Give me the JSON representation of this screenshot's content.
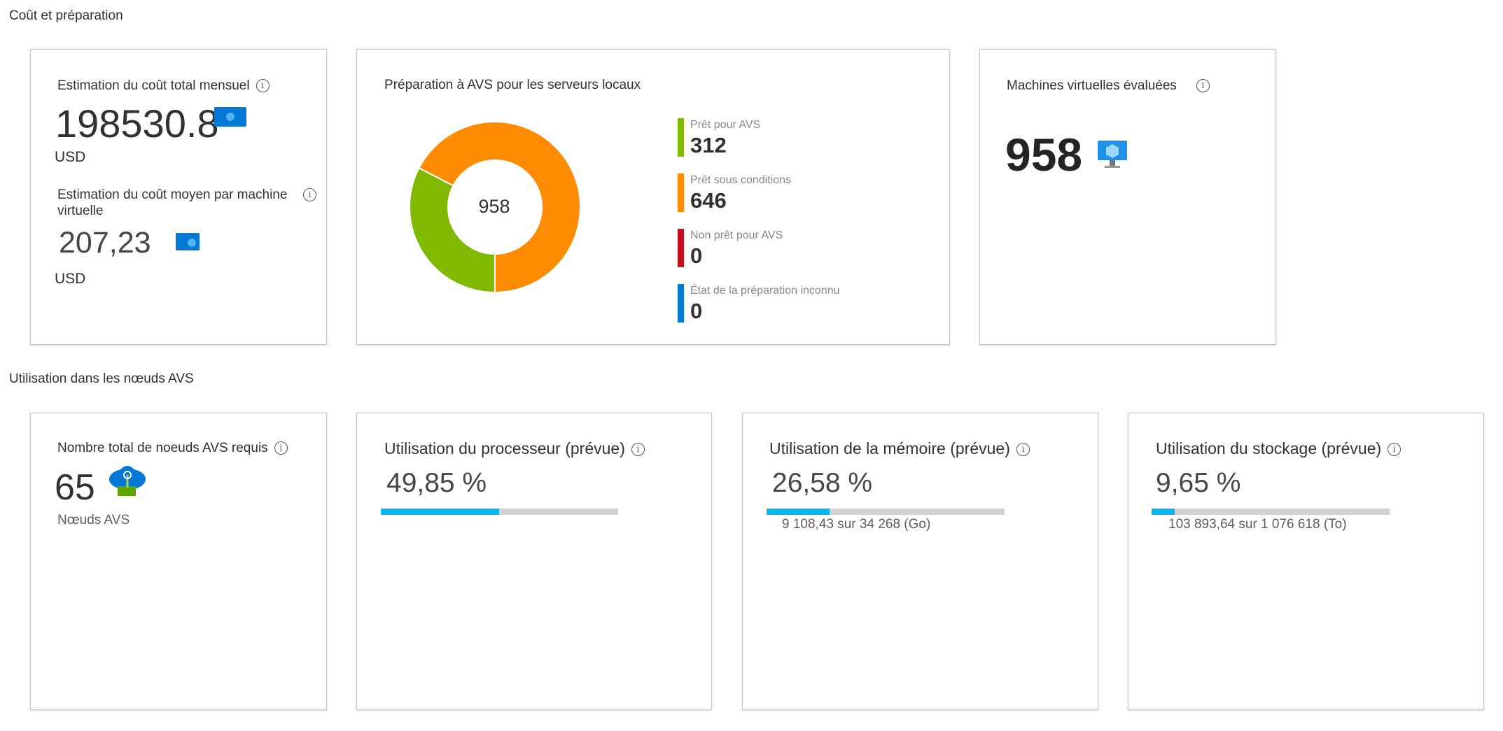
{
  "sections": {
    "cost": "Coût et préparation",
    "usage": "Utilisation dans les nœuds AVS"
  },
  "cost_card": {
    "total_title": "Estimation du coût total mensuel",
    "total_value": "198530.8",
    "total_currency": "USD",
    "avg_title": "Estimation du coût moyen par machine virtuelle",
    "avg_value": "207,23",
    "avg_currency": "USD",
    "icon": "money-icon"
  },
  "readiness": {
    "title": "Préparation à AVS pour les serveurs locaux",
    "total": "958",
    "items": [
      {
        "label": "Prêt pour AVS",
        "value": "312",
        "color": "#7fba00"
      },
      {
        "label": "Prêt sous conditions",
        "value": "646",
        "color": "#ff8c00"
      },
      {
        "label": "Non prêt pour AVS",
        "value": "0",
        "color": "#c50f1f"
      },
      {
        "label": "État de la préparation inconnu",
        "value": "0",
        "color": "#0078d4"
      }
    ]
  },
  "vms": {
    "title": "Machines virtuelles évaluées",
    "value": "958",
    "icon": "virtual-machine-icon"
  },
  "nodes": {
    "title": "Nombre total de noeuds AVS requis",
    "value": "65",
    "unit": "Nœuds AVS",
    "icon": "avs-node-icon"
  },
  "cpu": {
    "title": "Utilisation du processeur (prévue)",
    "value": "49,85 %",
    "percent": 49.85
  },
  "memory": {
    "title": "Utilisation de la mémoire (prévue)",
    "value": "26,58 %",
    "percent": 26.58,
    "detail": "9 108,43 sur 34 268 (Go)"
  },
  "storage": {
    "title": "Utilisation du stockage (prévue)",
    "value": "9,65 %",
    "percent": 9.65,
    "detail": "103 893,64 sur 1 076 618 (To)"
  },
  "info_glyph": "i"
}
